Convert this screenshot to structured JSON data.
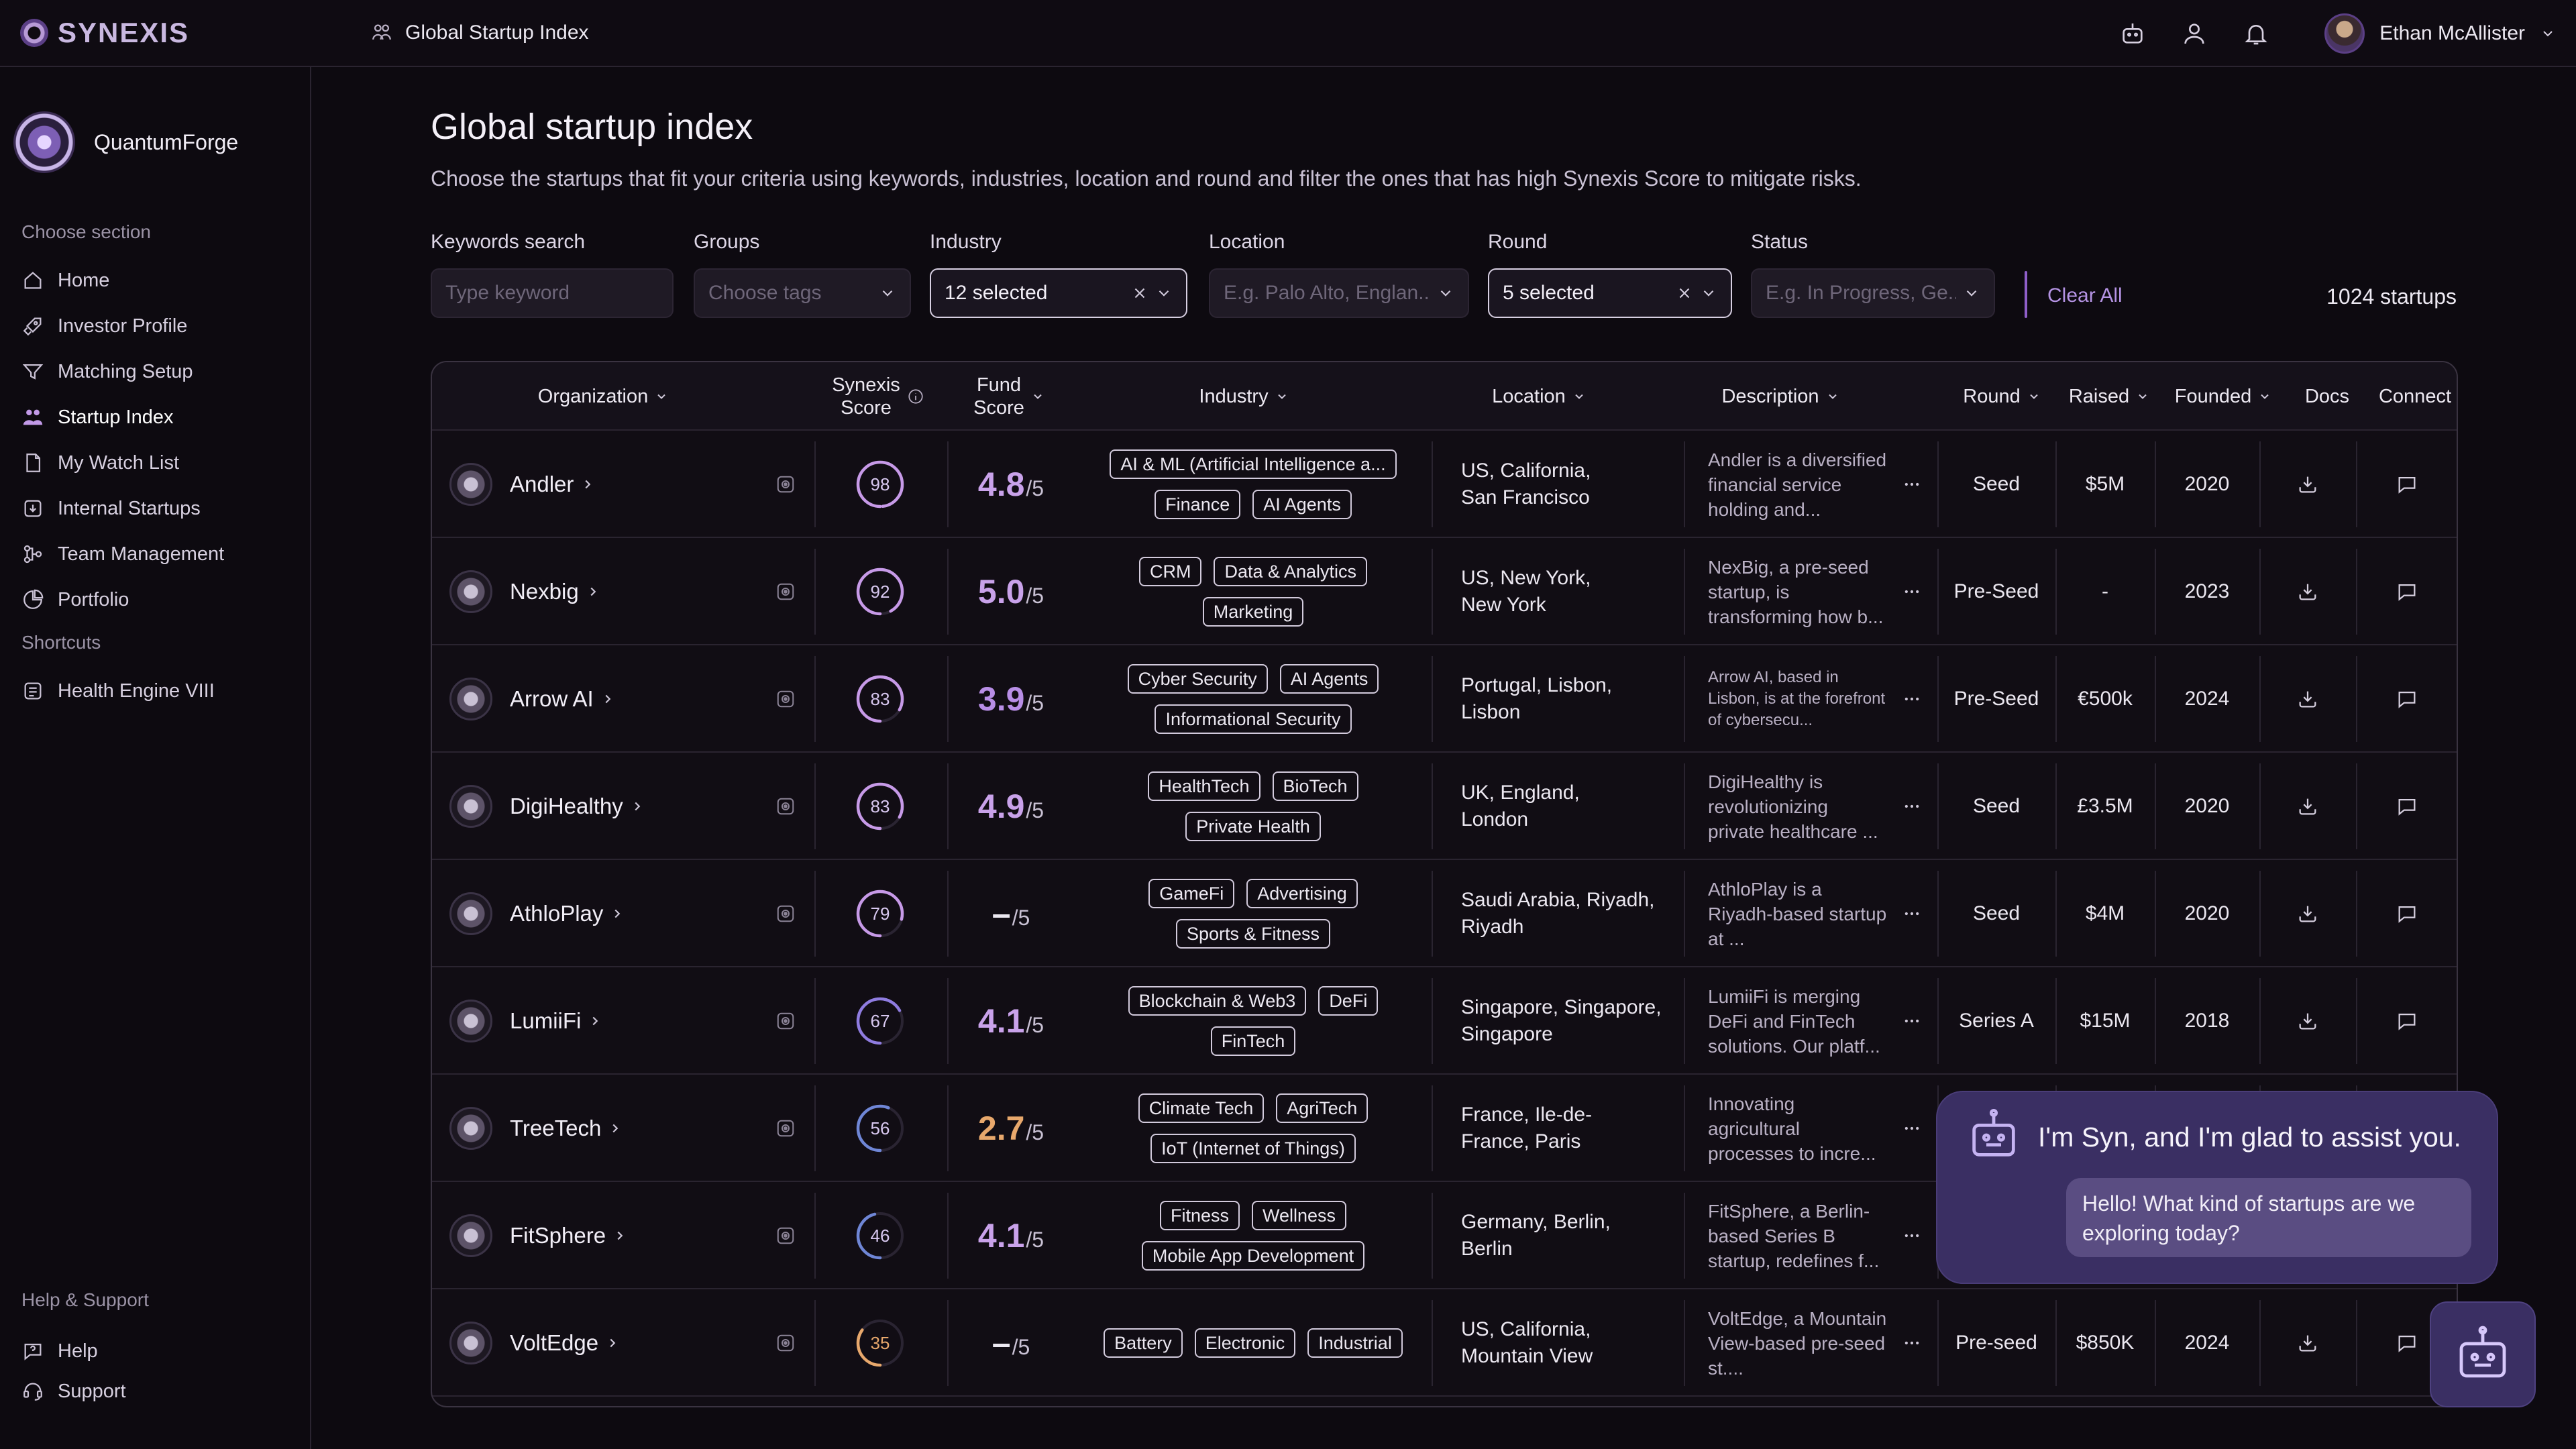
{
  "app": {
    "brand": "SYNEXIS",
    "breadcrumb": "Global Startup Index"
  },
  "user": {
    "name": "Ethan McAllister"
  },
  "sidebar": {
    "org_name": "QuantumForge",
    "section_label": "Choose section",
    "items": [
      {
        "label": "Home",
        "icon": "home-icon"
      },
      {
        "label": "Investor Profile",
        "icon": "rocket-icon"
      },
      {
        "label": "Matching Setup",
        "icon": "filter-icon"
      },
      {
        "label": "Startup Index",
        "icon": "people-icon",
        "active": true
      },
      {
        "label": "My Watch List",
        "icon": "document-icon"
      },
      {
        "label": "Internal Startups",
        "icon": "download-box-icon"
      },
      {
        "label": "Team Management",
        "icon": "team-icon"
      },
      {
        "label": "Portfolio",
        "icon": "pie-icon"
      }
    ],
    "shortcuts_label": "Shortcuts",
    "shortcuts": [
      {
        "label": "Health Engine VIII",
        "icon": "app-icon"
      }
    ],
    "help_label": "Help & Support",
    "help_items": [
      {
        "label": "Help"
      },
      {
        "label": "Support"
      }
    ]
  },
  "page": {
    "title": "Global startup index",
    "subtitle": "Choose the startups that fit your criteria using keywords, industries, location and round and filter the ones that has high Synexis Score to mitigate risks."
  },
  "filters": {
    "keywords": {
      "label": "Keywords search",
      "placeholder": "Type keyword"
    },
    "groups": {
      "label": "Groups",
      "placeholder": "Choose tags"
    },
    "industry": {
      "label": "Industry",
      "value": "12 selected"
    },
    "location": {
      "label": "Location",
      "placeholder": "E.g. Palo Alto, Englan..."
    },
    "round": {
      "label": "Round",
      "value": "5 selected"
    },
    "status": {
      "label": "Status",
      "placeholder": "E.g. In Progress, Ge..."
    },
    "clear_all": "Clear All",
    "count": "1024 startups"
  },
  "table": {
    "headers": {
      "organization": "Organization",
      "synexis_1": "Synexis",
      "synexis_2": "Score",
      "fund_1": "Fund",
      "fund_2": "Score",
      "industry": "Industry",
      "location": "Location",
      "description": "Description",
      "round": "Round",
      "raised": "Raised",
      "founded": "Founded",
      "docs": "Docs",
      "connect": "Connect"
    },
    "rows": [
      {
        "name": "Andler",
        "synexis": 98,
        "fund": "4.8",
        "fund_suffix": "/5",
        "fund_color": "#c9a2ea",
        "tags": [
          "AI & ML (Artificial Intelligence a...",
          "Finance",
          "AI Agents"
        ],
        "loc1": "US, California,",
        "loc2": "San Francisco",
        "desc": "Andler is a diversified financial service holding and...",
        "desc_small": false,
        "round": "Seed",
        "raised": "$5M",
        "founded": "2020"
      },
      {
        "name": "Nexbig",
        "synexis": 92,
        "fund": "5.0",
        "fund_suffix": "/5",
        "fund_color": "#c9a2ea",
        "tags": [
          "CRM",
          "Data & Analytics",
          "Marketing"
        ],
        "loc1": "US, New York,",
        "loc2": "New York",
        "desc": "NexBig, a pre-seed startup, is transforming how b...",
        "desc_small": false,
        "round": "Pre-Seed",
        "raised": "-",
        "founded": "2023"
      },
      {
        "name": "Arrow AI",
        "synexis": 83,
        "fund": "3.9",
        "fund_suffix": "/5",
        "fund_color": "#b88ee6",
        "tags": [
          "Cyber Security",
          "AI Agents",
          "Informational Security"
        ],
        "loc1": "Portugal, Lisbon,",
        "loc2": "Lisbon",
        "desc": "Arrow AI, based in Lisbon, is at the forefront of cybersecu...",
        "desc_small": true,
        "round": "Pre-Seed",
        "raised": "€500k",
        "founded": "2024"
      },
      {
        "name": "DigiHealthy",
        "synexis": 83,
        "fund": "4.9",
        "fund_suffix": "/5",
        "fund_color": "#c9a2ea",
        "tags": [
          "HealthTech",
          "BioTech",
          "Private Health"
        ],
        "loc1": "UK, England,",
        "loc2": "London",
        "desc": "DigiHealthy is revolutionizing private healthcare ...",
        "desc_small": false,
        "round": "Seed",
        "raised": "£3.5M",
        "founded": "2020"
      },
      {
        "name": "AthloPlay",
        "synexis": 79,
        "fund": "–",
        "fund_suffix": "/5",
        "fund_color": "#ece8f1",
        "tags": [
          "GameFi",
          "Advertising",
          "Sports & Fitness"
        ],
        "loc1": "Saudi Arabia, Riyadh,",
        "loc2": "Riyadh",
        "desc": "AthloPlay is a Riyadh-based startup at ...",
        "desc_small": false,
        "round": "Seed",
        "raised": "$4M",
        "founded": "2020"
      },
      {
        "name": "LumiiFi",
        "synexis": 67,
        "fund": "4.1",
        "fund_suffix": "/5",
        "fund_color": "#c9a2ea",
        "tags": [
          "Blockchain & Web3",
          "DeFi",
          "FinTech"
        ],
        "loc1": "Singapore, Singapore,",
        "loc2": "Singapore",
        "desc": "LumiiFi is merging DeFi and FinTech solutions. Our platf...",
        "desc_small": false,
        "round": "Series A",
        "raised": "$15M",
        "founded": "2018"
      },
      {
        "name": "TreeTech",
        "synexis": 56,
        "fund": "2.7",
        "fund_suffix": "/5",
        "fund_color": "#e8a86c",
        "tags": [
          "Climate Tech",
          "AgriTech",
          "IoT (Internet of Things)"
        ],
        "loc1": "France, Ile-de-",
        "loc2": "France, Paris",
        "desc": "Innovating agricultural processes to incre...",
        "desc_small": false,
        "round": "",
        "raised": "",
        "founded": ""
      },
      {
        "name": "FitSphere",
        "synexis": 46,
        "fund": "4.1",
        "fund_suffix": "/5",
        "fund_color": "#c9a2ea",
        "tags": [
          "Fitness",
          "Wellness",
          "Mobile App Development"
        ],
        "loc1": "Germany, Berlin,",
        "loc2": "Berlin",
        "desc": "FitSphere, a Berlin-based Series B startup, redefines f...",
        "desc_small": false,
        "round": "",
        "raised": "",
        "founded": ""
      },
      {
        "name": "VoltEdge",
        "synexis": 35,
        "fund": "–",
        "fund_suffix": "/5",
        "fund_color": "#ece8f1",
        "tags": [
          "Battery",
          "Electronic",
          "Industrial"
        ],
        "loc1": "US, California,",
        "loc2": "Mountain View",
        "desc": "VoltEdge, a Mountain View-based pre-seed st....",
        "desc_small": false,
        "round": "Pre-seed",
        "raised": "$850K",
        "founded": "2024"
      }
    ]
  },
  "assistant": {
    "greeting": "I'm Syn, and I'm glad to assist you.",
    "message": "Hello! What kind of startups are we exploring today?"
  },
  "colors": {
    "accent": "#b493e3",
    "ring_high": "#c79ae8",
    "ring_mid": "#8f7ce0",
    "ring_low_blue": "#6f86d6",
    "ring_low_orange": "#e8a86c"
  }
}
